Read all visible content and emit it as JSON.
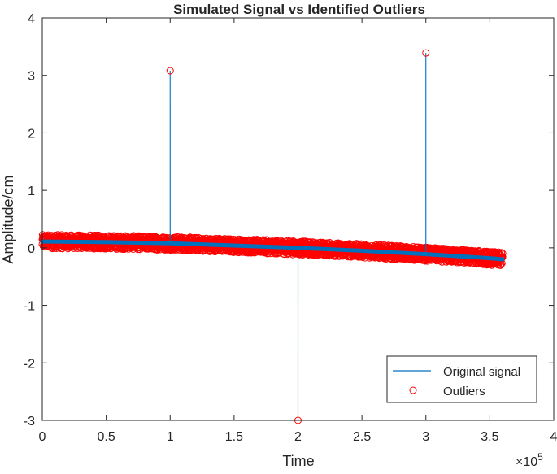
{
  "chart_data": {
    "type": "line",
    "title": "Simulated Signal vs Identified Outliers",
    "xlabel": "Time",
    "ylabel": "Amplitude/cm",
    "x_exponent_label": "×10",
    "x_exponent_power": "5",
    "xlim": [
      0,
      4
    ],
    "ylim": [
      -3,
      4
    ],
    "xticks": [
      0,
      0.5,
      1,
      1.5,
      2,
      2.5,
      3,
      3.5,
      4
    ],
    "xtick_labels": [
      "0",
      "0.5",
      "1",
      "1.5",
      "2",
      "2.5",
      "3",
      "3.5",
      "4"
    ],
    "yticks": [
      -3,
      -2,
      -1,
      0,
      1,
      2,
      3,
      4
    ],
    "ytick_labels": [
      "-3",
      "-2",
      "-1",
      "0",
      "1",
      "2",
      "3",
      "4"
    ],
    "grid": false,
    "legend_position": "bottom-right",
    "series": [
      {
        "name": "Original signal",
        "style": "line",
        "color": "#0072BD",
        "trend": {
          "x": [
            0,
            0.5,
            1,
            1.5,
            2,
            2.5,
            3,
            3.5,
            3.6
          ],
          "y": [
            0.11,
            0.1,
            0.08,
            0.04,
            0.0,
            -0.05,
            -0.11,
            -0.18,
            -0.2
          ]
        },
        "spikes": [
          {
            "x": 1.0,
            "y": 3.08
          },
          {
            "x": 2.0,
            "y": -3.0
          },
          {
            "x": 3.0,
            "y": 3.39
          }
        ]
      },
      {
        "name": "Outliers",
        "style": "markers",
        "color": "#FF0000",
        "band": {
          "x": [
            0,
            0.5,
            1,
            1.5,
            2,
            2.5,
            3,
            3.5,
            3.6
          ],
          "upper": [
            0.23,
            0.22,
            0.2,
            0.16,
            0.12,
            0.07,
            0.01,
            -0.06,
            -0.08
          ],
          "lower": [
            -0.01,
            -0.02,
            -0.04,
            -0.08,
            -0.12,
            -0.17,
            -0.23,
            -0.3,
            -0.32
          ]
        },
        "points": [
          {
            "x": 1.0,
            "y": 3.08
          },
          {
            "x": 2.0,
            "y": -3.0
          },
          {
            "x": 3.0,
            "y": 3.39
          }
        ]
      }
    ]
  }
}
